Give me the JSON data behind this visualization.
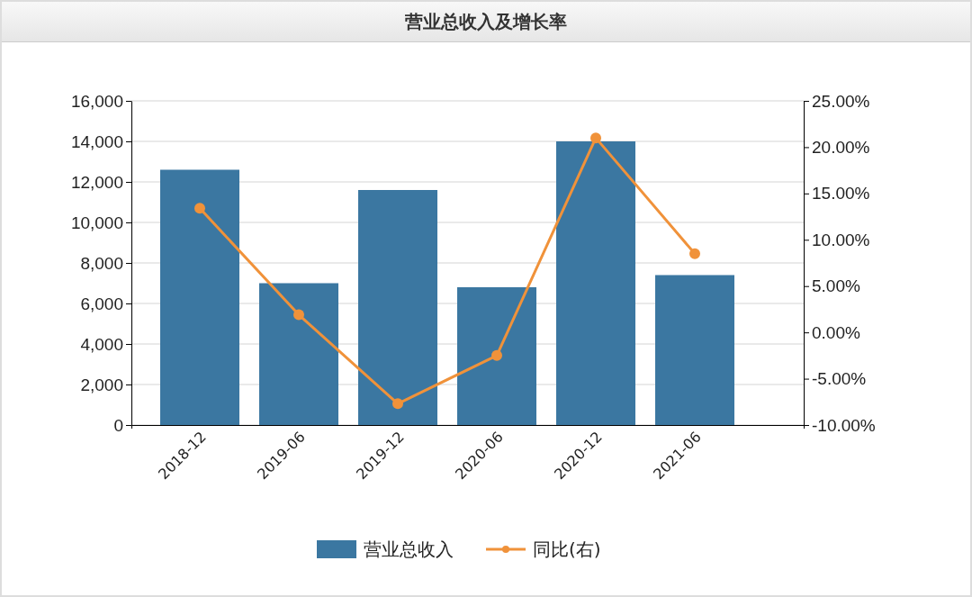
{
  "chart_data": {
    "type": "bar",
    "title": "营业总收入及增长率",
    "categories": [
      "2018-12",
      "2019-06",
      "2019-12",
      "2020-06",
      "2020-12",
      "2021-06"
    ],
    "series": [
      {
        "name": "营业总收入",
        "color": "#3b77a1",
        "values": [
          12600,
          7000,
          11600,
          6800,
          14000,
          7400
        ]
      },
      {
        "name": "同比(右)",
        "type": "line",
        "axis": "y2",
        "color": "#f0923a",
        "marker": "circle",
        "values": [
          13.4,
          1.9,
          -7.7,
          -2.5,
          21.0,
          8.5
        ]
      }
    ],
    "ylim": [
      0,
      16000
    ],
    "yticks": [
      {
        "value": 0,
        "label": "0"
      },
      {
        "value": 2000,
        "label": "2,000"
      },
      {
        "value": 4000,
        "label": "4,000"
      },
      {
        "value": 6000,
        "label": "6,000"
      },
      {
        "value": 8000,
        "label": "8,000"
      },
      {
        "value": 10000,
        "label": "10,000"
      },
      {
        "value": 12000,
        "label": "12,000"
      },
      {
        "value": 14000,
        "label": "14,000"
      },
      {
        "value": 16000,
        "label": "16,000"
      }
    ],
    "y2lim": [
      -10,
      25
    ],
    "y2ticks": [
      {
        "value": -10,
        "label": "-10.00%"
      },
      {
        "value": -5,
        "label": "-5.00%"
      },
      {
        "value": 0,
        "label": "0.00%"
      },
      {
        "value": 5,
        "label": "5.00%"
      },
      {
        "value": 10,
        "label": "10.00%"
      },
      {
        "value": 15,
        "label": "15.00%"
      },
      {
        "value": 20,
        "label": "20.00%"
      },
      {
        "value": 25,
        "label": "25.00%"
      }
    ],
    "grid": "y",
    "legend": "bottom"
  }
}
